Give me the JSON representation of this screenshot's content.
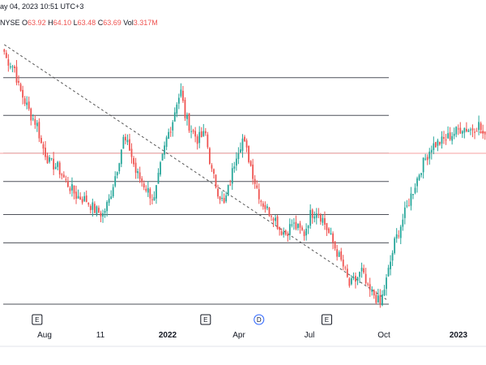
{
  "header": {
    "datetime": "ay 04, 2023 10:51 UTC+3",
    "exchange": "NYSE",
    "open_label": "O",
    "open_value": "63.92",
    "high_label": "H",
    "high_value": "64.10",
    "low_label": "L",
    "low_value": "63.48",
    "close_label": "C",
    "close_value": "63.69",
    "vol_label": "Vol",
    "vol_value": "3.317M"
  },
  "colors": {
    "up": "#26a69a",
    "down": "#ef5350",
    "level_line": "#131722",
    "trend_line": "#555555",
    "price_line": "#f7a1a1",
    "axis_text": "#131722",
    "earnings_marker": "#131722",
    "dividend_marker": "#2962ff"
  },
  "x_axis": {
    "ticks": [
      "Aug",
      "11",
      "2022",
      "Apr",
      "Jul",
      "Oct",
      "2023"
    ],
    "bold": [
      "2022",
      "2023"
    ]
  },
  "events": [
    {
      "label": "E",
      "type": "earnings",
      "bar": 16
    },
    {
      "label": "E",
      "type": "earnings",
      "bar": 98
    },
    {
      "label": "D",
      "type": "dividend",
      "bar": 124
    },
    {
      "label": "E",
      "type": "earnings",
      "bar": 157
    }
  ],
  "chart_data": {
    "type": "candlestick",
    "bar_count": 235,
    "keypoints": [
      [
        0,
        85
      ],
      [
        1,
        82
      ],
      [
        5,
        78
      ],
      [
        7,
        70
      ],
      [
        10,
        64
      ],
      [
        13,
        58
      ],
      [
        16,
        54
      ],
      [
        18,
        46
      ],
      [
        22,
        38
      ],
      [
        26,
        36
      ],
      [
        30,
        30
      ],
      [
        35,
        24
      ],
      [
        40,
        22
      ],
      [
        44,
        18
      ],
      [
        48,
        16
      ],
      [
        51,
        22
      ],
      [
        55,
        36
      ],
      [
        58,
        48
      ],
      [
        61,
        44
      ],
      [
        64,
        34
      ],
      [
        67,
        30
      ],
      [
        70,
        26
      ],
      [
        73,
        22
      ],
      [
        76,
        36
      ],
      [
        79,
        48
      ],
      [
        82,
        56
      ],
      [
        84,
        64
      ],
      [
        86,
        68
      ],
      [
        88,
        58
      ],
      [
        91,
        52
      ],
      [
        94,
        48
      ],
      [
        98,
        50
      ],
      [
        101,
        34
      ],
      [
        104,
        26
      ],
      [
        107,
        20
      ],
      [
        110,
        30
      ],
      [
        113,
        42
      ],
      [
        116,
        48
      ],
      [
        119,
        40
      ],
      [
        122,
        30
      ],
      [
        125,
        22
      ],
      [
        128,
        18
      ],
      [
        131,
        16
      ],
      [
        134,
        10
      ],
      [
        137,
        8
      ],
      [
        140,
        12
      ],
      [
        143,
        10
      ],
      [
        146,
        8
      ],
      [
        149,
        16
      ],
      [
        152,
        18
      ],
      [
        155,
        14
      ],
      [
        158,
        8
      ],
      [
        161,
        2
      ],
      [
        165,
        -6
      ],
      [
        168,
        -14
      ],
      [
        171,
        -12
      ],
      [
        174,
        -8
      ],
      [
        177,
        -16
      ],
      [
        180,
        -18
      ],
      [
        183,
        -22
      ],
      [
        186,
        -12
      ],
      [
        190,
        4
      ],
      [
        194,
        14
      ],
      [
        198,
        24
      ],
      [
        203,
        36
      ],
      [
        208,
        45
      ],
      [
        213,
        47
      ],
      [
        218,
        50
      ],
      [
        223,
        53
      ],
      [
        227,
        52
      ],
      [
        231,
        54
      ],
      [
        234,
        48
      ]
    ],
    "levels": [
      74,
      58,
      42,
      30,
      16,
      4,
      -22
    ],
    "trendline": {
      "from": [
        0,
        88
      ],
      "to": [
        186,
        -20
      ]
    }
  }
}
